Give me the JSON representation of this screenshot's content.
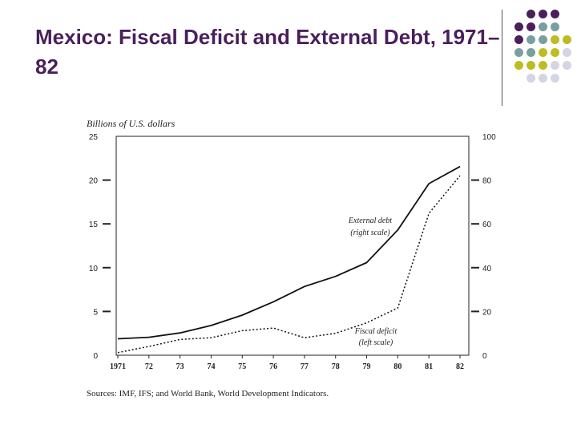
{
  "slide": {
    "title": "Mexico: Fiscal Deficit and External Debt, 1971–82"
  },
  "decoration": {
    "dot_colors": [
      "#4a1f5c",
      "#7a9fa0",
      "#bdbd22",
      "#d4d4e4"
    ],
    "title_color": "#4a1f5c"
  },
  "chart_data": {
    "type": "line",
    "title": "",
    "ylabel": "Billions of U.S. dollars",
    "xlabel": "",
    "x": [
      "1971",
      "72",
      "73",
      "74",
      "75",
      "76",
      "77",
      "78",
      "79",
      "80",
      "81",
      "82"
    ],
    "y_left_ticks": [
      "0",
      "5",
      "10",
      "15",
      "20",
      "25"
    ],
    "y_right_ticks": [
      "0",
      "20",
      "40",
      "60",
      "80",
      "100"
    ],
    "ylim_left": [
      0,
      25
    ],
    "ylim_right": [
      0,
      100
    ],
    "series": [
      {
        "name": "External debt",
        "label_line1": "External debt",
        "label_line2": "(right scale)",
        "axis": "right",
        "style": "solid",
        "values": [
          7.5,
          8.2,
          10.2,
          13.6,
          18.3,
          24.4,
          31.4,
          36.0,
          42.3,
          57.2,
          78.4,
          86.2
        ]
      },
      {
        "name": "Fiscal deficit",
        "label_line1": "Fiscal deficit",
        "label_line2": "(left scale)",
        "axis": "left",
        "style": "dotted",
        "values": [
          0.3,
          1.0,
          1.8,
          2.0,
          2.8,
          3.1,
          2.0,
          2.5,
          3.7,
          5.4,
          16.2,
          20.5
        ]
      }
    ],
    "source": "Sources: IMF, IFS; and World Bank, World Development Indicators."
  }
}
